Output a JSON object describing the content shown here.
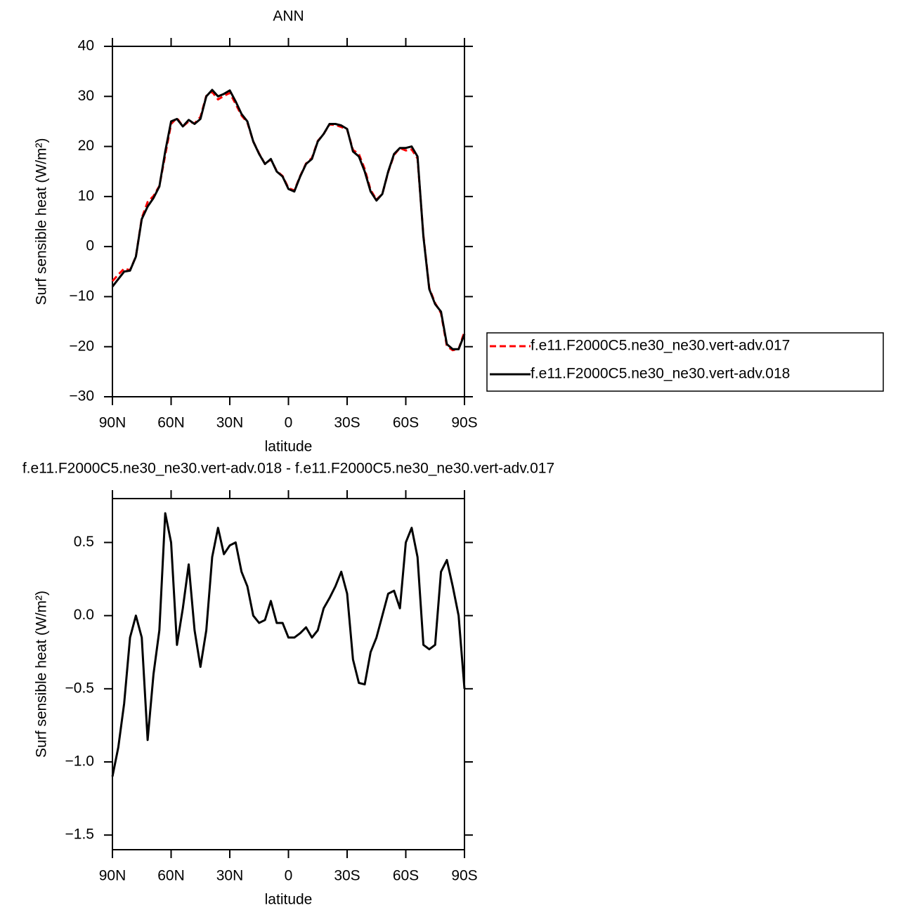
{
  "chart_data": [
    {
      "type": "line",
      "title": "ANN",
      "xlabel": "latitude",
      "ylabel": "Surf sensible heat (W/m²)",
      "x": [
        90,
        87,
        84,
        81,
        78,
        75,
        72,
        69,
        66,
        63,
        60,
        57,
        54,
        51,
        48,
        45,
        42,
        39,
        36,
        33,
        30,
        27,
        24,
        21,
        18,
        15,
        12,
        9,
        6,
        3,
        0,
        -3,
        -6,
        -9,
        -12,
        -15,
        -18,
        -21,
        -24,
        -27,
        -30,
        -33,
        -36,
        -39,
        -42,
        -45,
        -48,
        -51,
        -54,
        -57,
        -60,
        -63,
        -66,
        -69,
        -72,
        -75,
        -78,
        -81,
        -84,
        -87,
        -90
      ],
      "xlim": [
        90,
        -90
      ],
      "xticks": [
        {
          "value": 90,
          "label": "90N"
        },
        {
          "value": 60,
          "label": "60N"
        },
        {
          "value": 30,
          "label": "30N"
        },
        0,
        {
          "value": -30,
          "label": "30S"
        },
        {
          "value": -60,
          "label": "60S"
        },
        {
          "value": -90,
          "label": "90S"
        }
      ],
      "ylim": [
        -30,
        40
      ],
      "yticks": [
        {
          "value": -30,
          "label": "−30"
        },
        {
          "value": -20,
          "label": "−20"
        },
        {
          "value": -10,
          "label": "−10"
        },
        0,
        10,
        20,
        30,
        40
      ],
      "legend": "right",
      "series": [
        {
          "name": "f.e11.F2000C5.ne30_ne30.vert-adv.017",
          "color": "#ff0000",
          "linestyle": "dashed",
          "values": [
            -6.9,
            -5.6,
            -4.4,
            -4.7,
            -2,
            5.7,
            8.9,
            10.1,
            12.1,
            18.3,
            24.5,
            25.7,
            24,
            25,
            24.6,
            25.9,
            30.1,
            30.9,
            29.4,
            30.1,
            30.7,
            28.5,
            26.2,
            24.8,
            21,
            18.6,
            16.5,
            17.4,
            15.1,
            14.1,
            11.7,
            11.2,
            14.1,
            16.6,
            17.7,
            21.1,
            22.5,
            24.4,
            24.3,
            23.9,
            23.4,
            19.3,
            18.5,
            15.5,
            11.3,
            9.4,
            10.5,
            14.9,
            18.3,
            19.7,
            19.2,
            19.4,
            17.6,
            2.2,
            -8.3,
            -11.3,
            -13.3,
            -19.9,
            -20.7,
            -20.5,
            -17
          ]
        },
        {
          "name": "f.e11.F2000C5.ne30_ne30.vert-adv.018",
          "color": "#000000",
          "linestyle": "solid",
          "values": [
            -8,
            -6.5,
            -5,
            -4.8,
            -2,
            5.5,
            8,
            9.7,
            12,
            19,
            25,
            25.5,
            24,
            25.3,
            24.5,
            25.5,
            30,
            31.3,
            30,
            30.5,
            31.2,
            29,
            26.5,
            25,
            21,
            18.5,
            16.5,
            17.5,
            15,
            14,
            11.5,
            11,
            14,
            16.5,
            17.5,
            21,
            22.5,
            24.5,
            24.5,
            24.2,
            23.5,
            19,
            18,
            15,
            11,
            9.2,
            10.5,
            15,
            18.5,
            19.7,
            19.7,
            20,
            18,
            2,
            -8.5,
            -11.5,
            -13,
            -19.5,
            -20.5,
            -20.5,
            -17.5
          ]
        }
      ]
    },
    {
      "type": "line",
      "title": "f.e11.F2000C5.ne30_ne30.vert-adv.018 - f.e11.F2000C5.ne30_ne30.vert-adv.017",
      "xlabel": "latitude",
      "ylabel": "Surf sensible heat (W/m²)",
      "x": [
        90,
        87,
        84,
        81,
        78,
        75,
        72,
        69,
        66,
        63,
        60,
        57,
        54,
        51,
        48,
        45,
        42,
        39,
        36,
        33,
        30,
        27,
        24,
        21,
        18,
        15,
        12,
        9,
        6,
        3,
        0,
        -3,
        -6,
        -9,
        -12,
        -15,
        -18,
        -21,
        -24,
        -27,
        -30,
        -33,
        -36,
        -39,
        -42,
        -45,
        -48,
        -51,
        -54,
        -57,
        -60,
        -63,
        -66,
        -69,
        -72,
        -75,
        -78,
        -81,
        -84,
        -87,
        -90
      ],
      "xlim": [
        90,
        -90
      ],
      "xticks": [
        {
          "value": 90,
          "label": "90N"
        },
        {
          "value": 60,
          "label": "60N"
        },
        {
          "value": 30,
          "label": "30N"
        },
        0,
        {
          "value": -30,
          "label": "30S"
        },
        {
          "value": -60,
          "label": "60S"
        },
        {
          "value": -90,
          "label": "90S"
        }
      ],
      "ylim": [
        -1.6,
        0.8
      ],
      "yticks": [
        {
          "value": -1.5,
          "label": "−1.5"
        },
        {
          "value": -1,
          "label": "−1.0"
        },
        {
          "value": -0.5,
          "label": "−0.5"
        },
        {
          "value": 0,
          "label": "0.0"
        },
        0.5
      ],
      "series": [
        {
          "color": "#000000",
          "linestyle": "solid",
          "values": [
            -1.1,
            -0.9,
            -0.6,
            -0.15,
            0,
            -0.15,
            -0.85,
            -0.4,
            -0.1,
            0.7,
            0.5,
            -0.2,
            0.05,
            0.35,
            -0.1,
            -0.35,
            -0.1,
            0.4,
            0.6,
            0.42,
            0.48,
            0.5,
            0.3,
            0.2,
            0,
            -0.05,
            -0.03,
            0.1,
            -0.05,
            -0.05,
            -0.15,
            -0.15,
            -0.12,
            -0.08,
            -0.15,
            -0.1,
            0.05,
            0.12,
            0.2,
            0.3,
            0.15,
            -0.3,
            -0.46,
            -0.47,
            -0.25,
            -0.15,
            0,
            0.15,
            0.17,
            0.05,
            0.5,
            0.6,
            0.4,
            -0.2,
            -0.23,
            -0.2,
            0.3,
            0.38,
            0.2,
            0,
            -0.5
          ]
        }
      ]
    }
  ]
}
